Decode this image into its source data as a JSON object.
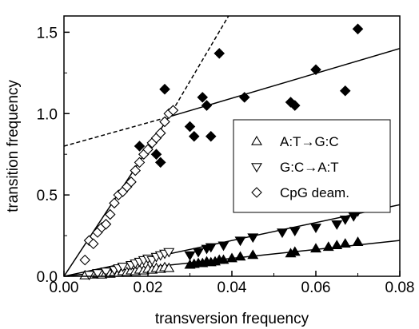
{
  "chart_data": {
    "type": "scatter",
    "title": "",
    "xlabel": "transversion frequency",
    "ylabel": "transition frequency",
    "xlim": [
      0,
      0.08
    ],
    "ylim": [
      0,
      1.6
    ],
    "xticks": [
      0,
      0.02,
      0.04,
      0.06,
      0.08
    ],
    "xtick_labels": [
      "0.00",
      "0.02",
      "0.04",
      "0.06",
      "0.08"
    ],
    "yticks": [
      0,
      0.5,
      1.0,
      1.5
    ],
    "ytick_labels": [
      "0.0",
      "0.5",
      "1.0",
      "1.5"
    ],
    "grid": false,
    "legend_position": "center-right",
    "series": [
      {
        "name": "A:T→G:C",
        "marker": "triangle-up",
        "points": [
          [
            0.005,
            0.005
          ],
          [
            0.007,
            0.01
          ],
          [
            0.008,
            0.015
          ],
          [
            0.009,
            0.01
          ],
          [
            0.01,
            0.02
          ],
          [
            0.011,
            0.015
          ],
          [
            0.012,
            0.025
          ],
          [
            0.013,
            0.02
          ],
          [
            0.014,
            0.03
          ],
          [
            0.015,
            0.025
          ],
          [
            0.016,
            0.035
          ],
          [
            0.017,
            0.03
          ],
          [
            0.018,
            0.04
          ],
          [
            0.019,
            0.035
          ],
          [
            0.02,
            0.045
          ],
          [
            0.021,
            0.04
          ],
          [
            0.022,
            0.05
          ],
          [
            0.023,
            0.045
          ],
          [
            0.024,
            0.055
          ],
          [
            0.025,
            0.05
          ]
        ]
      },
      {
        "name": "A:T→G:C (filled)",
        "marker": "triangle-up-filled",
        "points": [
          [
            0.03,
            0.07
          ],
          [
            0.031,
            0.075
          ],
          [
            0.032,
            0.08
          ],
          [
            0.033,
            0.08
          ],
          [
            0.034,
            0.09
          ],
          [
            0.035,
            0.085
          ],
          [
            0.036,
            0.09
          ],
          [
            0.037,
            0.1
          ],
          [
            0.038,
            0.1
          ],
          [
            0.04,
            0.11
          ],
          [
            0.042,
            0.12
          ],
          [
            0.045,
            0.13
          ],
          [
            0.054,
            0.14
          ],
          [
            0.055,
            0.15
          ],
          [
            0.06,
            0.17
          ],
          [
            0.063,
            0.18
          ],
          [
            0.065,
            0.19
          ],
          [
            0.067,
            0.2
          ],
          [
            0.07,
            0.21
          ]
        ]
      },
      {
        "name": "G:C→A:T",
        "marker": "triangle-down",
        "points": [
          [
            0.006,
            0.01
          ],
          [
            0.008,
            0.02
          ],
          [
            0.01,
            0.03
          ],
          [
            0.012,
            0.04
          ],
          [
            0.013,
            0.05
          ],
          [
            0.014,
            0.06
          ],
          [
            0.016,
            0.07
          ],
          [
            0.017,
            0.08
          ],
          [
            0.018,
            0.09
          ],
          [
            0.019,
            0.1
          ],
          [
            0.02,
            0.11
          ],
          [
            0.021,
            0.1
          ],
          [
            0.022,
            0.12
          ],
          [
            0.023,
            0.13
          ],
          [
            0.024,
            0.14
          ],
          [
            0.025,
            0.15
          ]
        ]
      },
      {
        "name": "G:C→A:T (filled)",
        "marker": "triangle-down-filled",
        "points": [
          [
            0.03,
            0.13
          ],
          [
            0.032,
            0.15
          ],
          [
            0.034,
            0.17
          ],
          [
            0.035,
            0.18
          ],
          [
            0.038,
            0.19
          ],
          [
            0.042,
            0.22
          ],
          [
            0.045,
            0.24
          ],
          [
            0.052,
            0.27
          ],
          [
            0.055,
            0.28
          ],
          [
            0.06,
            0.3
          ],
          [
            0.065,
            0.32
          ],
          [
            0.067,
            0.35
          ],
          [
            0.069,
            0.37
          ],
          [
            0.07,
            0.4
          ]
        ]
      },
      {
        "name": "CpG deam.",
        "marker": "diamond",
        "points": [
          [
            0.005,
            0.1
          ],
          [
            0.006,
            0.22
          ],
          [
            0.007,
            0.2
          ],
          [
            0.008,
            0.27
          ],
          [
            0.009,
            0.3
          ],
          [
            0.01,
            0.32
          ],
          [
            0.011,
            0.38
          ],
          [
            0.012,
            0.45
          ],
          [
            0.013,
            0.5
          ],
          [
            0.014,
            0.52
          ],
          [
            0.015,
            0.55
          ],
          [
            0.016,
            0.58
          ],
          [
            0.017,
            0.65
          ],
          [
            0.018,
            0.7
          ],
          [
            0.019,
            0.75
          ],
          [
            0.02,
            0.78
          ],
          [
            0.021,
            0.82
          ],
          [
            0.022,
            0.85
          ],
          [
            0.023,
            0.88
          ],
          [
            0.024,
            0.95
          ],
          [
            0.025,
            1.0
          ],
          [
            0.026,
            1.02
          ]
        ]
      },
      {
        "name": "CpG deam. (filled)",
        "marker": "diamond-filled",
        "points": [
          [
            0.018,
            0.8
          ],
          [
            0.022,
            0.75
          ],
          [
            0.023,
            0.7
          ],
          [
            0.024,
            1.15
          ],
          [
            0.03,
            0.92
          ],
          [
            0.031,
            0.86
          ],
          [
            0.033,
            1.1
          ],
          [
            0.034,
            1.05
          ],
          [
            0.035,
            0.86
          ],
          [
            0.037,
            1.37
          ],
          [
            0.043,
            1.1
          ],
          [
            0.054,
            1.07
          ],
          [
            0.055,
            1.05
          ],
          [
            0.06,
            1.27
          ],
          [
            0.067,
            1.14
          ],
          [
            0.07,
            1.52
          ]
        ]
      }
    ],
    "fit_lines": [
      {
        "style": "solid",
        "x": [
          0,
          0.08
        ],
        "y": [
          0,
          0.22
        ]
      },
      {
        "style": "solid",
        "x": [
          0,
          0.08
        ],
        "y": [
          0,
          0.44
        ]
      },
      {
        "style": "solid",
        "x": [
          0,
          0.025
        ],
        "y": [
          0,
          0.98
        ]
      },
      {
        "style": "solid",
        "x": [
          0.025,
          0.08
        ],
        "y": [
          0.98,
          1.4
        ]
      },
      {
        "style": "dashed",
        "x": [
          0,
          0.025
        ],
        "y": [
          0.8,
          0.98
        ]
      },
      {
        "style": "dashed",
        "x": [
          0.025,
          0.0392
        ],
        "y": [
          0.98,
          1.6
        ]
      }
    ],
    "legend": [
      {
        "label": "A:T→G:C",
        "marker": "triangle-up"
      },
      {
        "label": "G:C→A:T",
        "marker": "triangle-down"
      },
      {
        "label": "CpG deam.",
        "marker": "diamond"
      }
    ]
  }
}
